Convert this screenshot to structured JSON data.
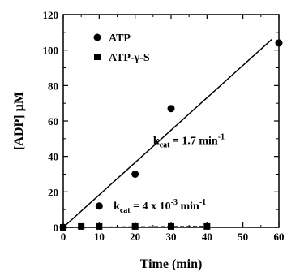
{
  "chart_data": {
    "type": "scatter",
    "xlabel": "Time (min)",
    "ylabel": "[ADP] µM",
    "xlim": [
      0,
      60
    ],
    "ylim": [
      0,
      120
    ],
    "xticks": [
      0,
      10,
      20,
      30,
      40,
      50,
      60
    ],
    "yticks": [
      0,
      20,
      40,
      60,
      80,
      100,
      120
    ],
    "grid": false,
    "legend_position": "top-left",
    "series": [
      {
        "name": "ATP",
        "marker": "circle",
        "x": [
          0,
          10,
          20,
          30,
          60
        ],
        "y": [
          0,
          12,
          30,
          67,
          104
        ],
        "fit": {
          "x": [
            0,
            58
          ],
          "y": [
            0,
            106
          ]
        }
      },
      {
        "name": "ATP-γ-S",
        "marker": "square",
        "x": [
          0,
          5,
          10,
          20,
          30,
          40
        ],
        "y": [
          0,
          0.5,
          0.5,
          0.5,
          0.5,
          0.5
        ],
        "fit": {
          "x": [
            0,
            40
          ],
          "y": [
            0,
            0.5
          ]
        }
      }
    ],
    "annotations": [
      {
        "prefix": "k",
        "sub": "cat",
        "main": " = 1.7 min",
        "sup": "-1",
        "at": [
          25,
          47
        ]
      },
      {
        "prefix": "k",
        "sub": "cat",
        "main": " = 4 x 10",
        "sup": "-3",
        "suffix": " min",
        "sup2": "-1",
        "at": [
          14,
          10
        ]
      }
    ]
  }
}
